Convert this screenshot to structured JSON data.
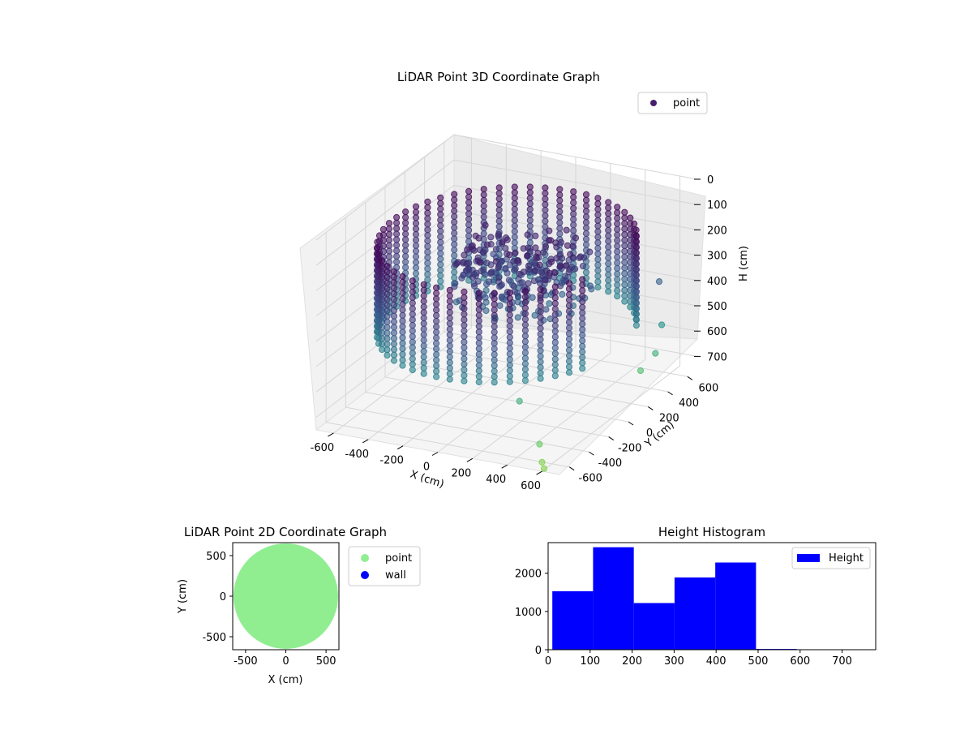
{
  "chart_data": [
    {
      "type": "scatter3d",
      "title": "LiDAR Point 3D Coordinate Graph",
      "xlabel": "X (cm)",
      "ylabel": "Y (cm)",
      "zlabel": "H (cm)",
      "xlim": [
        -700,
        700
      ],
      "ylim": [
        -700,
        700
      ],
      "zlim": [
        750,
        0
      ],
      "x_ticks": [
        -600,
        -400,
        -200,
        0,
        200,
        400,
        600
      ],
      "y_ticks": [
        -600,
        -400,
        -200,
        0,
        200,
        400,
        600
      ],
      "z_ticks": [
        0,
        100,
        200,
        300,
        400,
        500,
        600,
        700
      ],
      "grid": true,
      "legend": {
        "placement": "top-right",
        "entries": [
          {
            "label": "point",
            "color": "#46206e"
          }
        ]
      },
      "colormap": "viridis",
      "series": [
        {
          "name": "point",
          "shape": "ring of vertical scan columns",
          "ring_radius": 650,
          "column_height_range": [
            120,
            480
          ],
          "column_count": 46,
          "inner_cluster": {
            "x_range": [
              -300,
              300
            ],
            "y_range": [
              -100,
              400
            ],
            "h_range": [
              180,
              420
            ]
          },
          "stray_points": [
            {
              "x": 560,
              "y": 560,
              "h": 380
            },
            {
              "x": 620,
              "y": 480,
              "h": 520
            },
            {
              "x": 640,
              "y": 380,
              "h": 600
            },
            {
              "x": 600,
              "y": 300,
              "h": 650
            },
            {
              "x": 300,
              "y": -400,
              "h": 600
            },
            {
              "x": 500,
              "y": -550,
              "h": 700
            },
            {
              "x": 560,
              "y": -630,
              "h": 740
            },
            {
              "x": 600,
              "y": -680,
              "h": 745
            }
          ]
        }
      ]
    },
    {
      "type": "scatter",
      "title": "LiDAR Point 2D Coordinate Graph",
      "xlabel": "X (cm)",
      "ylabel": "Y (cm)",
      "xlim": [
        -660,
        660
      ],
      "ylim": [
        -660,
        660
      ],
      "x_ticks": [
        -500,
        0,
        500
      ],
      "y_ticks": [
        -500,
        0,
        500
      ],
      "legend": {
        "placement": "outside-right",
        "entries": [
          {
            "label": "point",
            "color": "#90ee90"
          },
          {
            "label": "wall",
            "color": "#0000ff"
          }
        ]
      },
      "series": [
        {
          "name": "point",
          "color": "#90ee90",
          "shape": "filled disc",
          "center": [
            0,
            0
          ],
          "radius": 650
        },
        {
          "name": "wall",
          "color": "#0000ff",
          "points": []
        }
      ]
    },
    {
      "type": "histogram",
      "title": "Height Histogram",
      "xlabel": "",
      "ylabel": "",
      "xlim": [
        0,
        780
      ],
      "ylim": [
        0,
        2800
      ],
      "x_ticks": [
        0,
        100,
        200,
        300,
        400,
        500,
        600,
        700
      ],
      "y_ticks": [
        0,
        1000,
        2000
      ],
      "color": "#0000ff",
      "legend": {
        "placement": "top-right",
        "entries": [
          {
            "label": "Height",
            "color": "#0000ff"
          }
        ]
      },
      "bin_edges": [
        10,
        107,
        204,
        301,
        398,
        495,
        592,
        689,
        786
      ],
      "values": [
        1530,
        2680,
        1220,
        1890,
        2280,
        20,
        5,
        2
      ]
    }
  ]
}
